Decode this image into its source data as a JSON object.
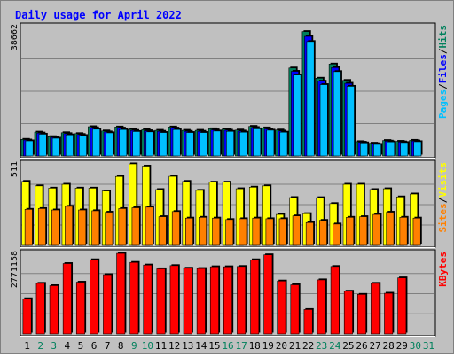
{
  "chart_data": {
    "type": "bar",
    "title": "Daily usage for April 2022",
    "categories": [
      "1",
      "2",
      "3",
      "4",
      "5",
      "6",
      "7",
      "8",
      "9",
      "10",
      "11",
      "12",
      "13",
      "14",
      "15",
      "16",
      "17",
      "18",
      "19",
      "20",
      "21",
      "22",
      "23",
      "24",
      "25",
      "26",
      "27",
      "28",
      "29",
      "30",
      "31"
    ],
    "weekend_days": [
      "2",
      "3",
      "9",
      "10",
      "16",
      "17",
      "23",
      "24",
      "30",
      "31"
    ],
    "category_colors": {
      "weekday": "#000000",
      "weekend": "#00805c"
    },
    "panels": [
      {
        "name": "hits-files-pages",
        "y_max_label": "38662",
        "ylim": [
          0,
          38662
        ],
        "right_label": [
          {
            "text": "Pages",
            "color": "#00c0ff"
          },
          {
            "text": "/",
            "color": "#000000"
          },
          {
            "text": "Files",
            "color": "#0000ff"
          },
          {
            "text": "/",
            "color": "#000000"
          },
          {
            "text": "Hits",
            "color": "#00805c"
          }
        ],
        "series": [
          {
            "name": "Hits",
            "color": "#00805c",
            "values": [
              4950,
              7110,
              5760,
              6930,
              6660,
              8730,
              7470,
              8640,
              7920,
              7830,
              7650,
              8640,
              7650,
              7650,
              8100,
              8010,
              7740,
              8820,
              8370,
              7740,
              26280,
              37170,
              23220,
              27450,
              22560,
              4250,
              3800,
              4600,
              4350,
              4650,
              null
            ]
          },
          {
            "name": "Files",
            "color": "#0000ff",
            "values": [
              4760,
              6840,
              5540,
              6660,
              6410,
              8400,
              7180,
              8310,
              7620,
              7530,
              7360,
              8310,
              7360,
              7360,
              7790,
              7700,
              7440,
              8480,
              8050,
              7440,
              25280,
              35750,
              22330,
              26400,
              21700,
              4090,
              3650,
              4420,
              4180,
              4470,
              null
            ]
          },
          {
            "name": "Pages",
            "color": "#00c0ff",
            "values": [
              4500,
              6500,
              5300,
              6300,
              6100,
              8000,
              6900,
              7900,
              7300,
              7200,
              7000,
              7900,
              7000,
              7000,
              7450,
              7350,
              7100,
              8100,
              7700,
              7100,
              24200,
              34200,
              21300,
              25200,
              20800,
              3900,
              3450,
              4200,
              4000,
              4250,
              null
            ]
          }
        ]
      },
      {
        "name": "visits-sites",
        "y_max_label": "511",
        "ylim": [
          0,
          511
        ],
        "right_label": [
          {
            "text": "Sites",
            "color": "#ff8000"
          },
          {
            "text": "/",
            "color": "#000000"
          },
          {
            "text": "Visits",
            "color": "#ffff00"
          }
        ],
        "series": [
          {
            "name": "Visits",
            "color": "#ffff00",
            "values": [
              401,
              373,
              359,
              383,
              359,
              359,
              341,
              432,
              511,
              497,
              350,
              433,
              401,
              345,
              396,
              396,
              355,
              365,
              373,
              194,
              300,
              199,
              299,
              262,
              383,
              383,
              350,
              355,
              304,
              322,
              null
            ]
          },
          {
            "name": "Sites",
            "color": "#ff8000",
            "values": [
              226,
              231,
              222,
              245,
              222,
              217,
              208,
              231,
              236,
              240,
              180,
              212,
              171,
              176,
              171,
              162,
              167,
              171,
              167,
              167,
              185,
              143,
              157,
              134,
              176,
              180,
              194,
              208,
              176,
              171,
              null
            ]
          }
        ]
      },
      {
        "name": "kbytes",
        "y_max_label": "2771158",
        "ylim": [
          0,
          2771158
        ],
        "right_label": [
          {
            "text": "KBytes",
            "color": "#ff0000"
          }
        ],
        "series": [
          {
            "name": "KBytes",
            "color": "#ff0000",
            "values": [
              1210000,
              1740000,
              1660000,
              2420000,
              1780000,
              2550000,
              2040000,
              2770000,
              2460000,
              2370000,
              2240000,
              2350000,
              2260000,
              2250000,
              2310000,
              2310000,
              2320000,
              2550000,
              2720000,
              1820000,
              1690000,
              840000,
              1860000,
              2320000,
              1470000,
              1360000,
              1740000,
              1400000,
              1930000,
              null,
              null
            ]
          }
        ]
      }
    ]
  }
}
